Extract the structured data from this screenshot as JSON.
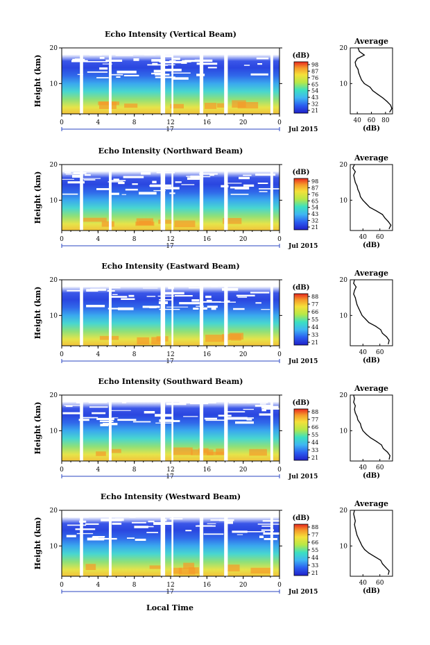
{
  "figure": {
    "xlabel": "Local Time",
    "date_label": "Jul 2015",
    "day_label": "17"
  },
  "chart_data": [
    {
      "type": "heatmap",
      "title": "Echo Intensity (Vertical Beam)",
      "ylabel": "Height (km)",
      "xlabel": "",
      "x_ticks": [
        "0",
        "4",
        "8",
        "12",
        "16",
        "20",
        "0"
      ],
      "y_ticks": [
        "10",
        "20"
      ],
      "xlim": [
        0,
        24
      ],
      "ylim": [
        1.5,
        20
      ],
      "colorbar_unit": "(dB)",
      "colorbar_ticks": [
        "98",
        "87",
        "76",
        "65",
        "54",
        "43",
        "32",
        "21"
      ],
      "avg_title": "Average",
      "avg_xlabel": "(dB)",
      "avg_x_ticks": [
        "40",
        "60",
        "80"
      ],
      "avg_xlim": [
        30,
        90
      ],
      "avg_profile": [
        {
          "h": 2,
          "v": 86
        },
        {
          "h": 3,
          "v": 89
        },
        {
          "h": 4,
          "v": 87
        },
        {
          "h": 5,
          "v": 82
        },
        {
          "h": 6,
          "v": 76
        },
        {
          "h": 7,
          "v": 69
        },
        {
          "h": 8,
          "v": 62
        },
        {
          "h": 9,
          "v": 58
        },
        {
          "h": 10,
          "v": 50
        },
        {
          "h": 11,
          "v": 46
        },
        {
          "h": 12,
          "v": 44
        },
        {
          "h": 13,
          "v": 42
        },
        {
          "h": 14,
          "v": 41
        },
        {
          "h": 15,
          "v": 38
        },
        {
          "h": 16,
          "v": 37
        },
        {
          "h": 17,
          "v": 40
        },
        {
          "h": 18,
          "v": 50
        },
        {
          "h": 19,
          "v": 43
        },
        {
          "h": 20,
          "v": 41
        }
      ]
    },
    {
      "type": "heatmap",
      "title": "Echo Intensity (Northward Beam)",
      "ylabel": "Height (km)",
      "xlabel": "",
      "x_ticks": [
        "0",
        "4",
        "8",
        "12",
        "16",
        "20",
        "0"
      ],
      "y_ticks": [
        "10",
        "20"
      ],
      "xlim": [
        0,
        24
      ],
      "ylim": [
        1.5,
        20
      ],
      "colorbar_unit": "(dB)",
      "colorbar_ticks": [
        "98",
        "87",
        "76",
        "65",
        "54",
        "43",
        "32",
        "21"
      ],
      "avg_title": "Average",
      "avg_xlabel": "(dB)",
      "avg_x_ticks": [
        "40",
        "60"
      ],
      "avg_xlim": [
        25,
        75
      ],
      "avg_profile": [
        {
          "h": 2,
          "v": 71
        },
        {
          "h": 3,
          "v": 73
        },
        {
          "h": 4,
          "v": 70
        },
        {
          "h": 5,
          "v": 66
        },
        {
          "h": 6,
          "v": 63
        },
        {
          "h": 7,
          "v": 56
        },
        {
          "h": 8,
          "v": 48
        },
        {
          "h": 9,
          "v": 44
        },
        {
          "h": 10,
          "v": 40
        },
        {
          "h": 11,
          "v": 37
        },
        {
          "h": 12,
          "v": 36
        },
        {
          "h": 13,
          "v": 34
        },
        {
          "h": 14,
          "v": 33
        },
        {
          "h": 15,
          "v": 31
        },
        {
          "h": 16,
          "v": 30
        },
        {
          "h": 17,
          "v": 29
        },
        {
          "h": 18,
          "v": 31
        },
        {
          "h": 19,
          "v": 28
        },
        {
          "h": 20,
          "v": 30
        }
      ]
    },
    {
      "type": "heatmap",
      "title": "Echo Intensity (Eastward Beam)",
      "ylabel": "Height (km)",
      "xlabel": "",
      "x_ticks": [
        "0",
        "4",
        "8",
        "12",
        "16",
        "20",
        "0"
      ],
      "y_ticks": [
        "10",
        "20"
      ],
      "xlim": [
        0,
        24
      ],
      "ylim": [
        1.5,
        20
      ],
      "colorbar_unit": "(dB)",
      "colorbar_ticks": [
        "88",
        "77",
        "66",
        "55",
        "44",
        "33",
        "21"
      ],
      "avg_title": "Average",
      "avg_xlabel": "(dB)",
      "avg_x_ticks": [
        "40",
        "60"
      ],
      "avg_xlim": [
        25,
        75
      ],
      "avg_profile": [
        {
          "h": 2,
          "v": 70
        },
        {
          "h": 3,
          "v": 71
        },
        {
          "h": 4,
          "v": 68
        },
        {
          "h": 5,
          "v": 63
        },
        {
          "h": 6,
          "v": 61
        },
        {
          "h": 7,
          "v": 55
        },
        {
          "h": 8,
          "v": 47
        },
        {
          "h": 9,
          "v": 43
        },
        {
          "h": 10,
          "v": 39
        },
        {
          "h": 11,
          "v": 37
        },
        {
          "h": 12,
          "v": 35
        },
        {
          "h": 13,
          "v": 33
        },
        {
          "h": 14,
          "v": 32
        },
        {
          "h": 15,
          "v": 31
        },
        {
          "h": 16,
          "v": 29
        },
        {
          "h": 17,
          "v": 30
        },
        {
          "h": 18,
          "v": 32
        },
        {
          "h": 19,
          "v": 29
        },
        {
          "h": 20,
          "v": 30
        }
      ]
    },
    {
      "type": "heatmap",
      "title": "Echo Intensity (Southward Beam)",
      "ylabel": "Height (km)",
      "xlabel": "",
      "x_ticks": [
        "0",
        "4",
        "8",
        "12",
        "16",
        "20",
        "0"
      ],
      "y_ticks": [
        "10",
        "20"
      ],
      "xlim": [
        0,
        24
      ],
      "ylim": [
        1.5,
        20
      ],
      "colorbar_unit": "(dB)",
      "colorbar_ticks": [
        "88",
        "77",
        "66",
        "55",
        "44",
        "33",
        "21"
      ],
      "avg_title": "Average",
      "avg_xlabel": "(dB)",
      "avg_x_ticks": [
        "40",
        "60"
      ],
      "avg_xlim": [
        25,
        75
      ],
      "avg_profile": [
        {
          "h": 2,
          "v": 71
        },
        {
          "h": 3,
          "v": 72
        },
        {
          "h": 4,
          "v": 69
        },
        {
          "h": 5,
          "v": 64
        },
        {
          "h": 6,
          "v": 62
        },
        {
          "h": 7,
          "v": 56
        },
        {
          "h": 8,
          "v": 49
        },
        {
          "h": 9,
          "v": 44
        },
        {
          "h": 10,
          "v": 40
        },
        {
          "h": 11,
          "v": 38
        },
        {
          "h": 12,
          "v": 37
        },
        {
          "h": 13,
          "v": 34
        },
        {
          "h": 14,
          "v": 33
        },
        {
          "h": 15,
          "v": 31
        },
        {
          "h": 16,
          "v": 30
        },
        {
          "h": 17,
          "v": 31
        },
        {
          "h": 18,
          "v": 29
        },
        {
          "h": 19,
          "v": 30
        },
        {
          "h": 20,
          "v": 29
        }
      ]
    },
    {
      "type": "heatmap",
      "title": "Echo Intensity (Westward Beam)",
      "ylabel": "Height (km)",
      "xlabel": "",
      "x_ticks": [
        "0",
        "4",
        "8",
        "12",
        "16",
        "20",
        "0"
      ],
      "y_ticks": [
        "10",
        "20"
      ],
      "xlim": [
        0,
        24
      ],
      "ylim": [
        1.5,
        20
      ],
      "colorbar_unit": "(dB)",
      "colorbar_ticks": [
        "88",
        "77",
        "66",
        "55",
        "44",
        "33",
        "21"
      ],
      "avg_title": "Average",
      "avg_xlabel": "(dB)",
      "avg_x_ticks": [
        "40",
        "60"
      ],
      "avg_xlim": [
        25,
        75
      ],
      "avg_profile": [
        {
          "h": 2,
          "v": 70
        },
        {
          "h": 3,
          "v": 71
        },
        {
          "h": 4,
          "v": 67
        },
        {
          "h": 5,
          "v": 63
        },
        {
          "h": 6,
          "v": 61
        },
        {
          "h": 7,
          "v": 54
        },
        {
          "h": 8,
          "v": 47
        },
        {
          "h": 9,
          "v": 42
        },
        {
          "h": 10,
          "v": 39
        },
        {
          "h": 11,
          "v": 37
        },
        {
          "h": 12,
          "v": 35
        },
        {
          "h": 13,
          "v": 33
        },
        {
          "h": 14,
          "v": 32
        },
        {
          "h": 15,
          "v": 31
        },
        {
          "h": 16,
          "v": 30
        },
        {
          "h": 17,
          "v": 31
        },
        {
          "h": 18,
          "v": 30
        },
        {
          "h": 19,
          "v": 29
        },
        {
          "h": 20,
          "v": 30
        }
      ]
    }
  ]
}
